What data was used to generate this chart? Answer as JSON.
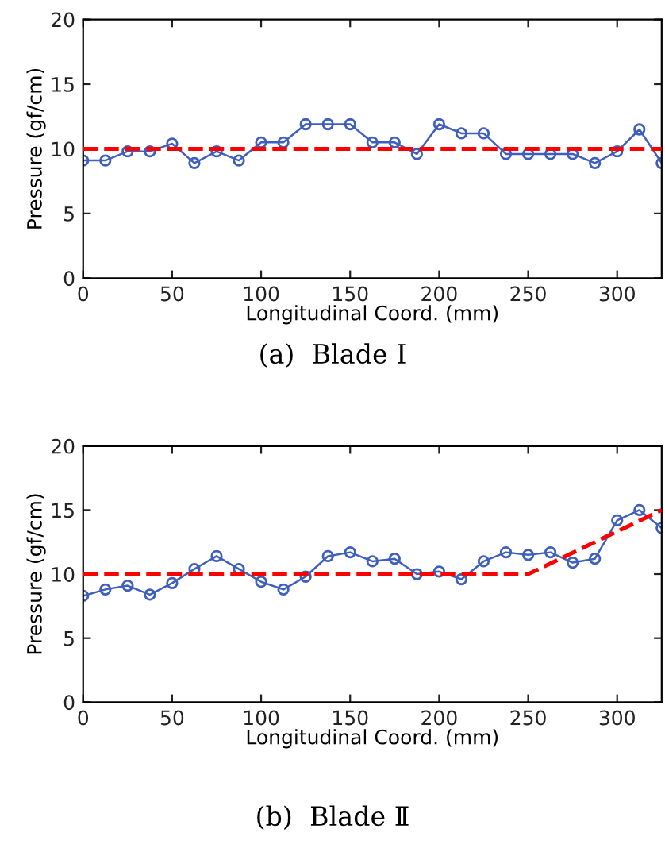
{
  "chart_data": [
    {
      "type": "line",
      "xlabel": "Longitudinal Coord. (mm)",
      "ylabel": "Pressure (gf/cm)",
      "annotations": [
        "(a)  Blade Ⅰ"
      ],
      "xlim": [
        0,
        325
      ],
      "ylim": [
        0,
        20
      ],
      "xticks": [
        0,
        50,
        100,
        150,
        200,
        250,
        300
      ],
      "yticks": [
        0,
        5,
        10,
        15,
        20
      ],
      "grid": false,
      "legend": false,
      "marker": "circle",
      "line_style": "solid",
      "x": [
        0,
        12.5,
        25,
        37.5,
        50,
        62.5,
        75,
        87.5,
        100,
        112.5,
        125,
        137.5,
        150,
        162.5,
        175,
        187.5,
        200,
        212.5,
        225,
        237.5,
        250,
        262.5,
        275,
        287.5,
        300,
        312.5,
        325
      ],
      "series": [
        {
          "color": "#3f5fbf",
          "values": [
            9.1,
            9.1,
            9.8,
            9.8,
            10.4,
            8.9,
            9.8,
            9.1,
            10.5,
            10.5,
            11.9,
            11.9,
            11.9,
            10.5,
            10.5,
            9.6,
            11.9,
            11.2,
            11.2,
            9.6,
            9.6,
            9.6,
            9.6,
            8.9,
            9.8,
            11.5,
            8.9
          ]
        }
      ],
      "ref_lines": [
        {
          "axis": "y",
          "value": 10,
          "color": "#ff0000",
          "line_style": "dashed"
        }
      ]
    },
    {
      "type": "line",
      "xlabel": "Longitudinal Coord. (mm)",
      "ylabel": "Pressure (gf/cm)",
      "annotations": [
        "(b)  Blade Ⅱ"
      ],
      "xlim": [
        0,
        325
      ],
      "ylim": [
        0,
        20
      ],
      "xticks": [
        0,
        50,
        100,
        150,
        200,
        250,
        300
      ],
      "yticks": [
        0,
        5,
        10,
        15,
        20
      ],
      "grid": false,
      "legend": false,
      "marker": "circle",
      "line_style": "solid",
      "x": [
        0,
        12.5,
        25,
        37.5,
        50,
        62.5,
        75,
        87.5,
        100,
        112.5,
        125,
        137.5,
        150,
        162.5,
        175,
        187.5,
        200,
        212.5,
        225,
        237.5,
        250,
        262.5,
        275,
        287.5,
        300,
        312.5,
        325
      ],
      "series": [
        {
          "color": "#3f5fbf",
          "values": [
            8.3,
            8.8,
            9.1,
            8.4,
            9.3,
            10.4,
            11.4,
            10.4,
            9.4,
            8.8,
            9.8,
            11.4,
            11.7,
            11.0,
            11.2,
            10.0,
            10.2,
            9.6,
            11.0,
            11.7,
            11.5,
            11.7,
            10.9,
            11.2,
            14.2,
            15.0,
            13.6
          ]
        },
        {
          "color": "#ff0000",
          "x": [
            0,
            250,
            325
          ],
          "values": [
            10,
            10,
            15
          ],
          "marker": "none",
          "line_style": "dashed"
        }
      ]
    }
  ]
}
